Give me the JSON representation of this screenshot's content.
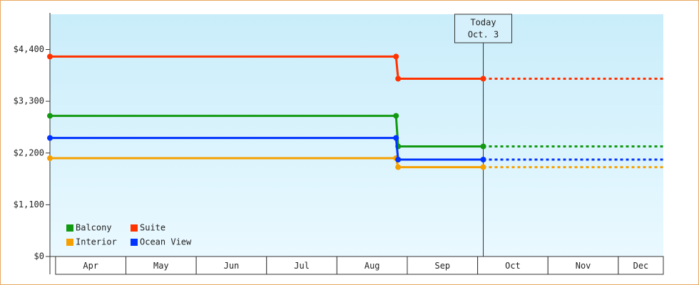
{
  "chart_data": {
    "type": "line",
    "categories": [
      "Apr",
      "May",
      "Jun",
      "Jul",
      "Aug",
      "Sep",
      "Oct",
      "Nov",
      "Dec"
    ],
    "xlim": [
      -0.08,
      8.64
    ],
    "ylim": [
      0,
      5150
    ],
    "yticks": [
      {
        "value": 0,
        "label": "$0"
      },
      {
        "value": 1100,
        "label": "$1,100"
      },
      {
        "value": 2200,
        "label": "$2,200"
      },
      {
        "value": 3300,
        "label": "$3,300"
      },
      {
        "value": 4400,
        "label": "$4,400"
      }
    ],
    "series": [
      {
        "name": "Balcony",
        "color": "#119911",
        "x": [
          -0.08,
          4.84,
          4.87,
          6.08
        ],
        "values": [
          2990,
          2990,
          2340,
          2340
        ]
      },
      {
        "name": "Suite",
        "color": "#ff3300",
        "x": [
          -0.08,
          4.84,
          4.87,
          6.08
        ],
        "values": [
          4250,
          4250,
          3780,
          3780
        ]
      },
      {
        "name": "Interior",
        "color": "#f5a000",
        "x": [
          -0.08,
          4.84,
          4.87,
          6.08
        ],
        "values": [
          2090,
          2090,
          1900,
          1900
        ]
      },
      {
        "name": "Ocean View",
        "color": "#0033ff",
        "x": [
          -0.08,
          4.84,
          4.87,
          6.08
        ],
        "values": [
          2520,
          2520,
          2060,
          2060
        ]
      }
    ],
    "today": {
      "label": [
        "Today",
        "Oct. 3"
      ],
      "x": 6.08
    }
  }
}
